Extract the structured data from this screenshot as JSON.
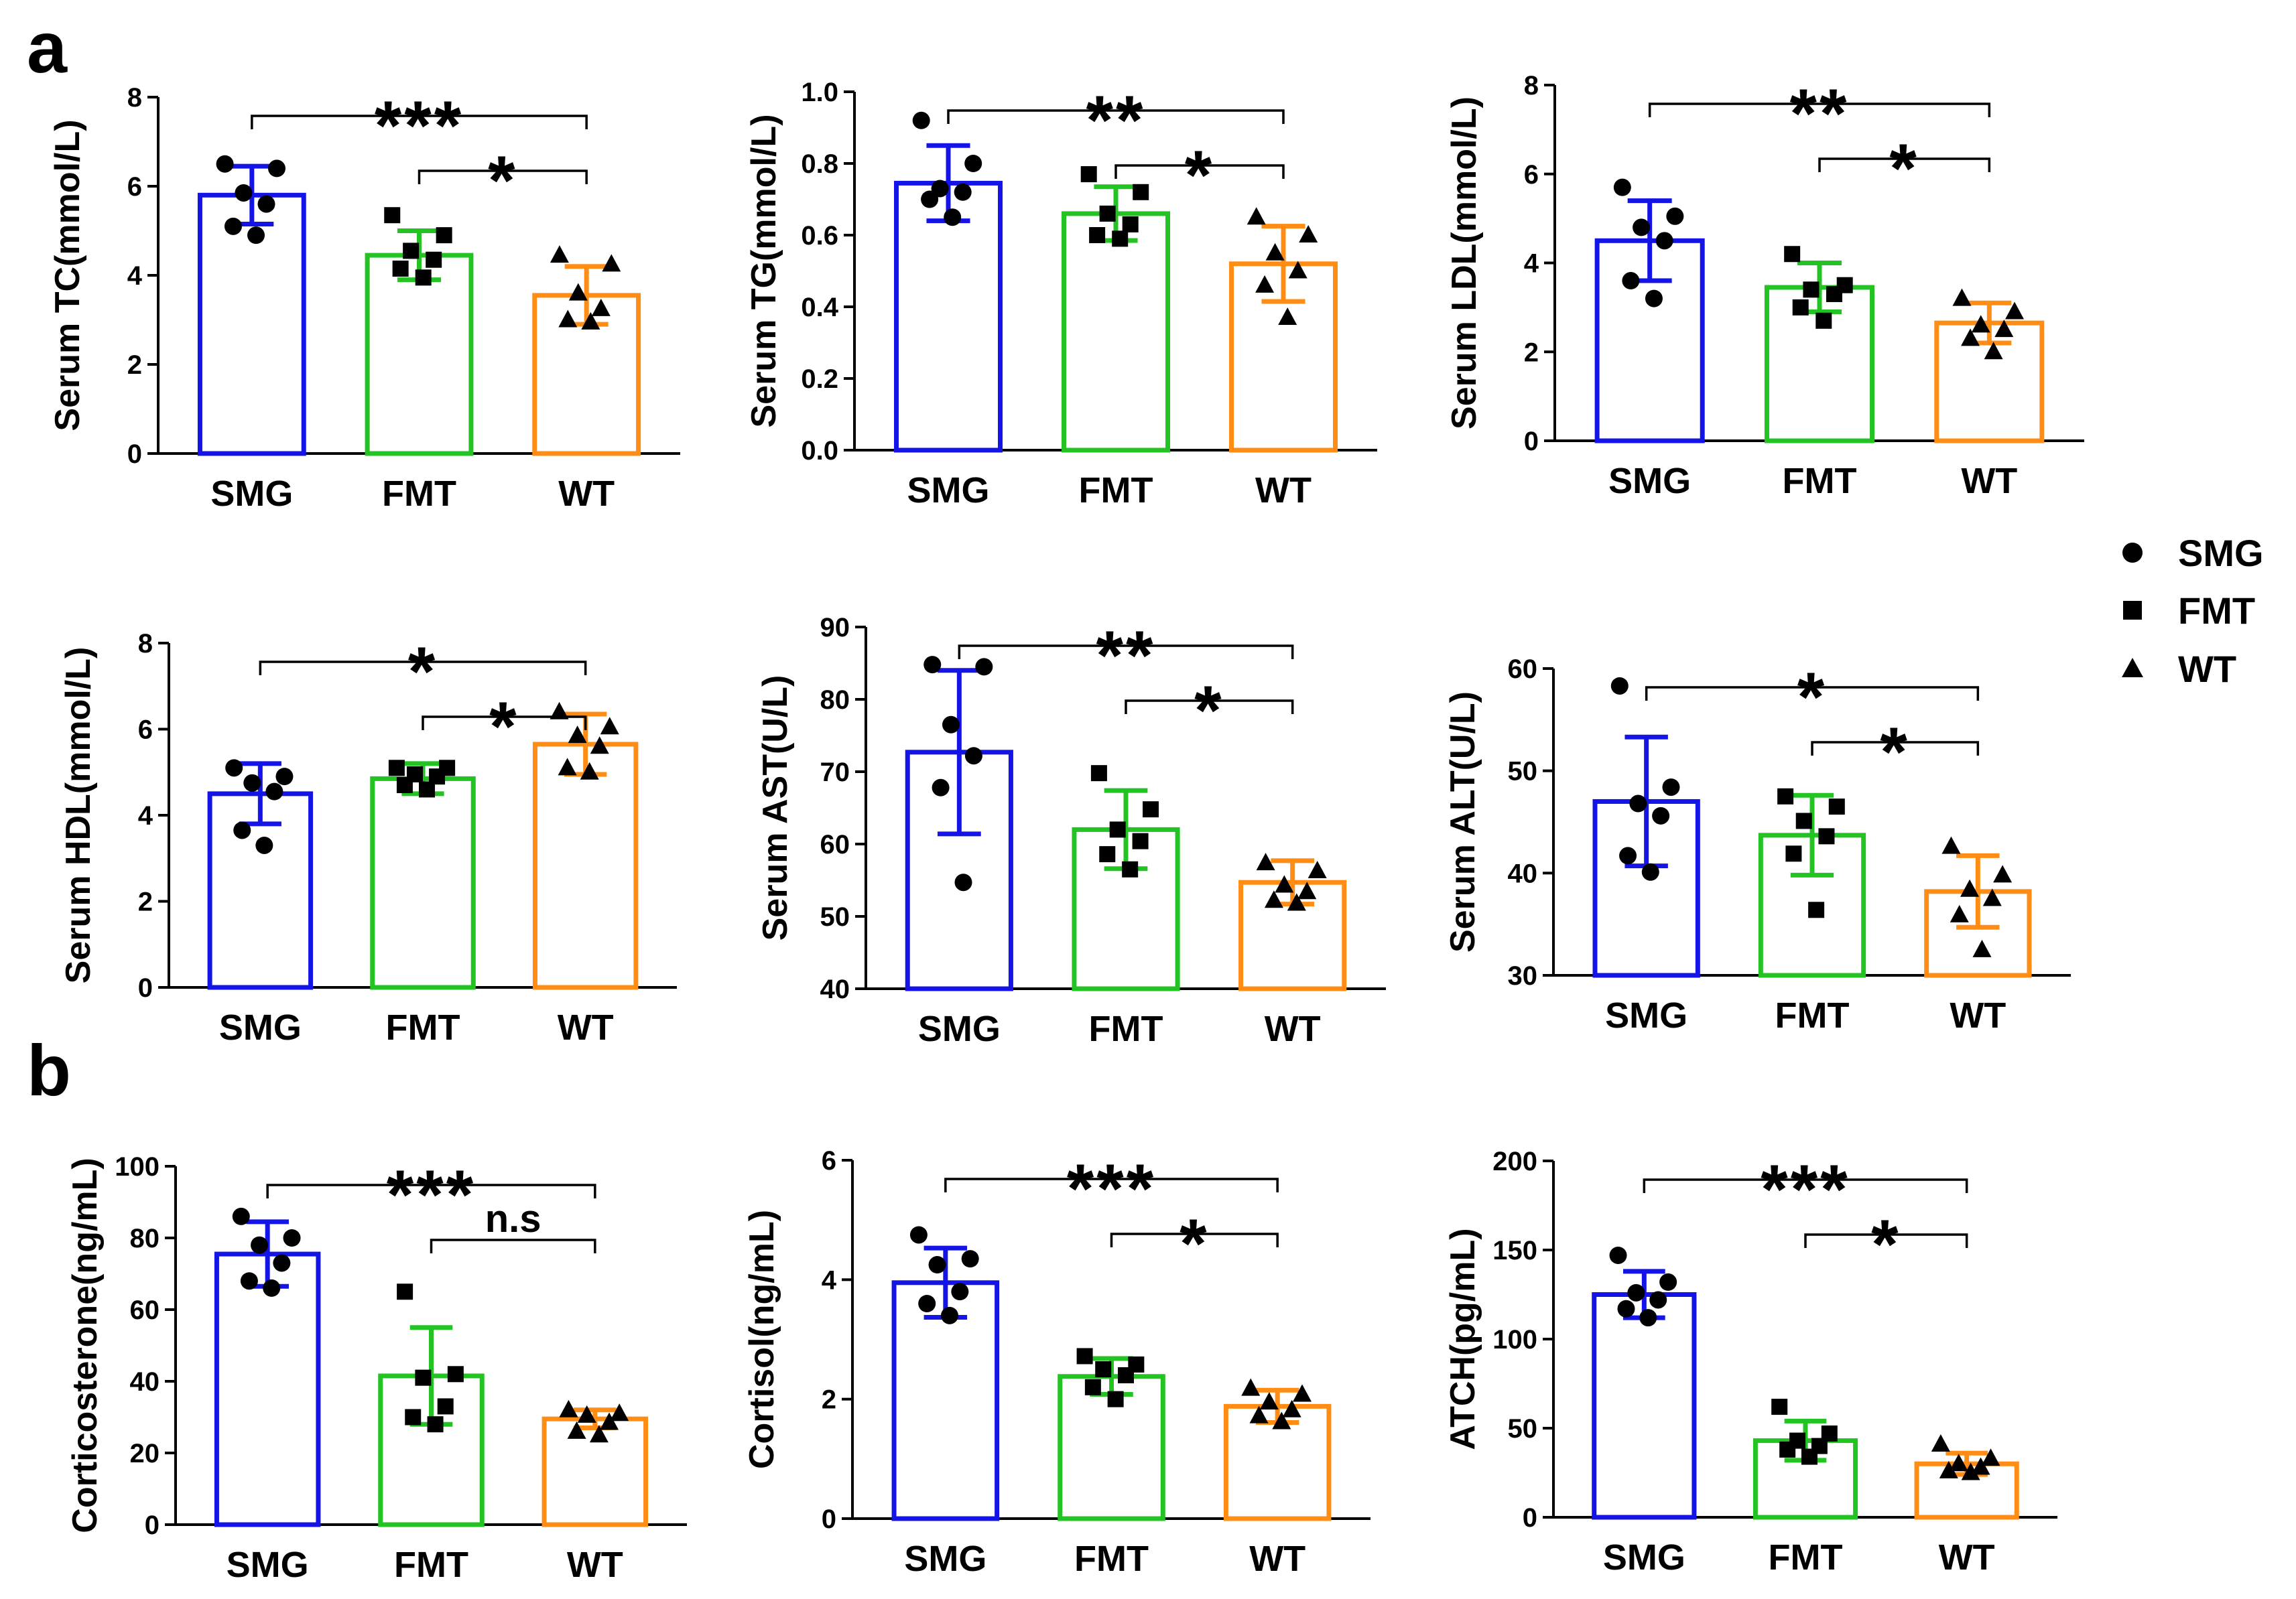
{
  "panel_labels": {
    "a": "a",
    "b": "b"
  },
  "colors": {
    "SMG": "#1414e6",
    "FMT": "#22c322",
    "WT": "#ff8c14",
    "axis": "#000000",
    "points": "#000000"
  },
  "legend": [
    {
      "label": "SMG",
      "marker": "circle"
    },
    {
      "label": "FMT",
      "marker": "square"
    },
    {
      "label": "WT",
      "marker": "triangle"
    }
  ],
  "chart_data": [
    {
      "type": "bar",
      "panel": "a",
      "ylabel": "Serum TC(mmol/L)",
      "categories": [
        "SMG",
        "FMT",
        "WT"
      ],
      "ylim": [
        0,
        8
      ],
      "yticks": [
        "0",
        "2",
        "4",
        "6",
        "8"
      ],
      "means": [
        5.8,
        4.45,
        3.55
      ],
      "sd": [
        0.65,
        0.55,
        0.65
      ],
      "points": [
        [
          6.5,
          6.4,
          5.85,
          5.6,
          5.1,
          4.9
        ],
        [
          5.35,
          4.9,
          4.55,
          4.35,
          4.15,
          3.95
        ],
        [
          4.45,
          4.25,
          3.6,
          3.25,
          3.0,
          2.95
        ]
      ],
      "comparisons": [
        {
          "from": "SMG",
          "to": "WT",
          "label": "***"
        },
        {
          "from": "FMT",
          "to": "WT",
          "label": "*"
        }
      ]
    },
    {
      "type": "bar",
      "panel": "a",
      "ylabel": "Serum TG(mmol/L)",
      "categories": [
        "SMG",
        "FMT",
        "WT"
      ],
      "ylim": [
        0,
        1.0
      ],
      "yticks": [
        "0.0",
        "0.2",
        "0.4",
        "0.6",
        "0.8",
        "1.0"
      ],
      "means": [
        0.745,
        0.66,
        0.52
      ],
      "sd": [
        0.105,
        0.075,
        0.105
      ],
      "points": [
        [
          0.92,
          0.8,
          0.73,
          0.72,
          0.7,
          0.65
        ],
        [
          0.77,
          0.72,
          0.66,
          0.63,
          0.6,
          0.59
        ],
        [
          0.65,
          0.6,
          0.55,
          0.5,
          0.46,
          0.37
        ]
      ],
      "comparisons": [
        {
          "from": "SMG",
          "to": "WT",
          "label": "**"
        },
        {
          "from": "FMT",
          "to": "WT",
          "label": "*"
        }
      ]
    },
    {
      "type": "bar",
      "panel": "a",
      "ylabel": "Serum LDL(mmol/L)",
      "categories": [
        "SMG",
        "FMT",
        "WT"
      ],
      "ylim": [
        0,
        8
      ],
      "yticks": [
        "0",
        "2",
        "4",
        "6",
        "8"
      ],
      "means": [
        4.5,
        3.45,
        2.65
      ],
      "sd": [
        0.9,
        0.55,
        0.45
      ],
      "points": [
        [
          5.7,
          5.05,
          4.8,
          4.5,
          3.6,
          3.2
        ],
        [
          4.2,
          3.5,
          3.4,
          3.3,
          3.0,
          2.7
        ],
        [
          3.2,
          2.9,
          2.6,
          2.5,
          2.3,
          2.0
        ]
      ],
      "comparisons": [
        {
          "from": "SMG",
          "to": "WT",
          "label": "**"
        },
        {
          "from": "FMT",
          "to": "WT",
          "label": "*"
        }
      ]
    },
    {
      "type": "bar",
      "panel": "a",
      "ylabel": "Serum HDL(mmol/L)",
      "categories": [
        "SMG",
        "FMT",
        "WT"
      ],
      "ylim": [
        0,
        8
      ],
      "yticks": [
        "0",
        "2",
        "4",
        "6",
        "8"
      ],
      "means": [
        4.5,
        4.85,
        5.65
      ],
      "sd": [
        0.7,
        0.35,
        0.7
      ],
      "points": [
        [
          5.1,
          4.9,
          4.75,
          4.55,
          3.65,
          3.3
        ],
        [
          5.1,
          5.1,
          4.95,
          4.9,
          4.7,
          4.6
        ],
        [
          6.4,
          6.05,
          5.85,
          5.6,
          5.1,
          5.0
        ]
      ],
      "comparisons": [
        {
          "from": "SMG",
          "to": "WT",
          "label": "*"
        },
        {
          "from": "FMT",
          "to": "WT",
          "label": "*"
        }
      ]
    },
    {
      "type": "bar",
      "panel": "a",
      "ylabel": "Serum AST(U/L)",
      "categories": [
        "SMG",
        "FMT",
        "WT"
      ],
      "ylim": [
        40,
        90
      ],
      "yticks": [
        "40",
        "50",
        "60",
        "70",
        "80",
        "90"
      ],
      "means": [
        72.7,
        62.0,
        54.7
      ],
      "sd": [
        11.3,
        5.4,
        3.0
      ],
      "points": [
        [
          84.8,
          84.5,
          76.5,
          72.2,
          67.8,
          54.7
        ],
        [
          69.8,
          64.8,
          62.0,
          60.4,
          58.6,
          56.5
        ],
        [
          57.4,
          56.3,
          54.3,
          53.4,
          52.2,
          51.8
        ]
      ],
      "comparisons": [
        {
          "from": "SMG",
          "to": "WT",
          "label": "**"
        },
        {
          "from": "FMT",
          "to": "WT",
          "label": "*"
        }
      ]
    },
    {
      "type": "bar",
      "panel": "a",
      "ylabel": "Serum ALT(U/L)",
      "categories": [
        "SMG",
        "FMT",
        "WT"
      ],
      "ylim": [
        30,
        60
      ],
      "yticks": [
        "30",
        "40",
        "50",
        "60"
      ],
      "means": [
        47.0,
        43.7,
        38.2
      ],
      "sd": [
        6.3,
        3.9,
        3.5
      ],
      "points": [
        [
          58.3,
          48.4,
          46.8,
          45.6,
          41.7,
          40.1
        ],
        [
          47.5,
          46.5,
          45.1,
          43.6,
          41.9,
          36.4
        ],
        [
          42.6,
          39.8,
          38.4,
          37.5,
          35.9,
          32.5
        ]
      ],
      "comparisons": [
        {
          "from": "SMG",
          "to": "WT",
          "label": "*"
        },
        {
          "from": "FMT",
          "to": "WT",
          "label": "*"
        }
      ]
    },
    {
      "type": "bar",
      "panel": "b",
      "ylabel": "Corticosterone(ng/mL)",
      "categories": [
        "SMG",
        "FMT",
        "WT"
      ],
      "ylim": [
        0,
        100
      ],
      "yticks": [
        "0",
        "20",
        "40",
        "60",
        "80",
        "100"
      ],
      "means": [
        75.5,
        41.5,
        29.5
      ],
      "sd": [
        9.0,
        13.5,
        2.5
      ],
      "points": [
        [
          86.0,
          80.0,
          78.0,
          73.0,
          68.0,
          66.0
        ],
        [
          65.0,
          42.0,
          41.0,
          33.0,
          30.0,
          28.0
        ],
        [
          32.0,
          31.0,
          30.5,
          28.5,
          26.0,
          25.0
        ]
      ],
      "comparisons": [
        {
          "from": "SMG",
          "to": "WT",
          "label": "***"
        },
        {
          "from": "FMT",
          "to": "WT",
          "label": "n.s"
        }
      ]
    },
    {
      "type": "bar",
      "panel": "b",
      "ylabel": "Cortisol(ng/mL)",
      "categories": [
        "SMG",
        "FMT",
        "WT"
      ],
      "ylim": [
        0,
        6
      ],
      "yticks": [
        "0",
        "2",
        "4",
        "6"
      ],
      "means": [
        3.95,
        2.38,
        1.88
      ],
      "sd": [
        0.58,
        0.3,
        0.27
      ],
      "points": [
        [
          4.75,
          4.35,
          4.25,
          3.8,
          3.6,
          3.4
        ],
        [
          2.72,
          2.58,
          2.5,
          2.4,
          2.2,
          2.0
        ],
        [
          2.18,
          2.08,
          1.95,
          1.82,
          1.72,
          1.62
        ]
      ],
      "comparisons": [
        {
          "from": "SMG",
          "to": "WT",
          "label": "***"
        },
        {
          "from": "FMT",
          "to": "WT",
          "label": "*"
        }
      ]
    },
    {
      "type": "bar",
      "panel": "b",
      "ylabel": "ATCH(pg/mL)",
      "categories": [
        "SMG",
        "FMT",
        "WT"
      ],
      "ylim": [
        0,
        200
      ],
      "yticks": [
        "0",
        "50",
        "100",
        "150",
        "200"
      ],
      "means": [
        125,
        43,
        30
      ],
      "sd": [
        13,
        11,
        6
      ],
      "points": [
        [
          147,
          132,
          126,
          122,
          117,
          112
        ],
        [
          62,
          47,
          43,
          40,
          38,
          34
        ],
        [
          41,
          33,
          30,
          28,
          26,
          25
        ]
      ],
      "comparisons": [
        {
          "from": "SMG",
          "to": "WT",
          "label": "***"
        },
        {
          "from": "FMT",
          "to": "WT",
          "label": "*"
        }
      ]
    }
  ]
}
